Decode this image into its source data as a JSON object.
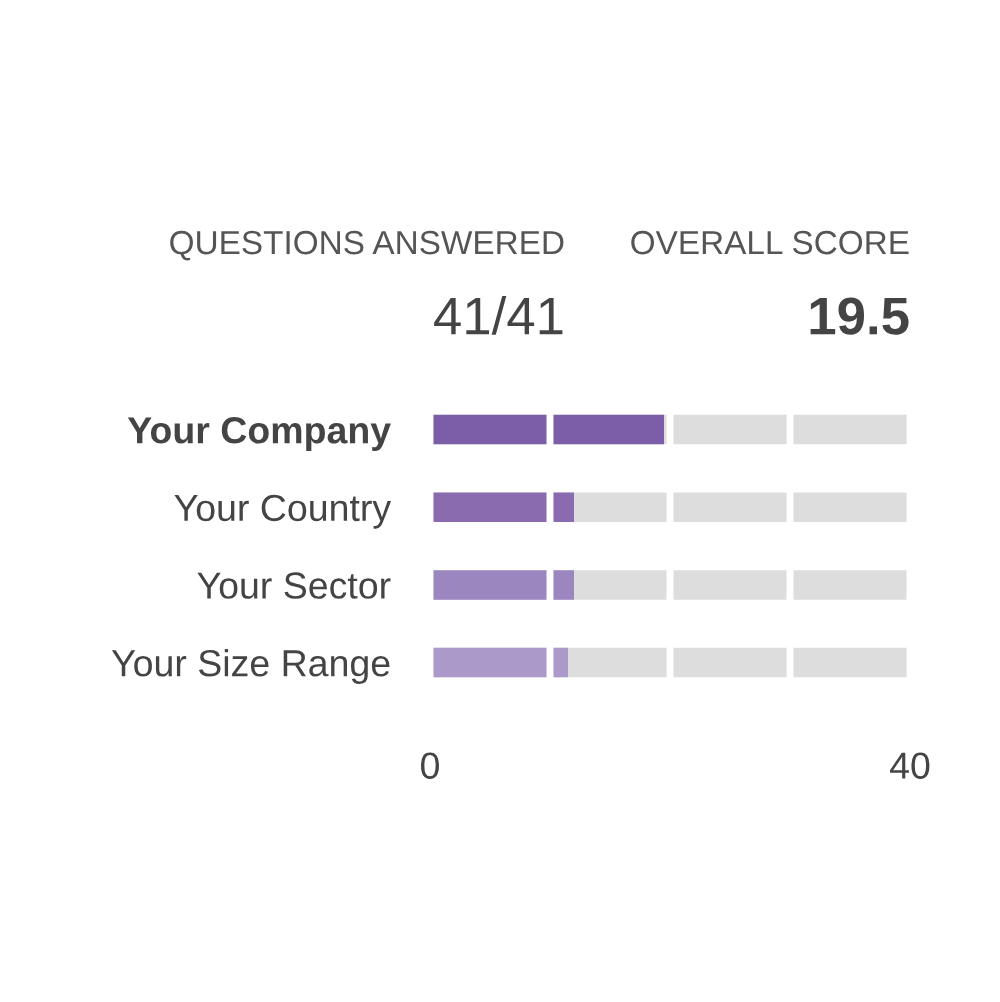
{
  "chart_data": {
    "type": "bar",
    "orientation": "horizontal",
    "categories": [
      "Your Company",
      "Your Country",
      "Your Sector",
      "Your Size Range"
    ],
    "values": [
      19.5,
      12,
      12,
      11.5
    ],
    "colors": [
      "#7b5ea7",
      "#8a6bb0",
      "#9c86bf",
      "#ab99c9"
    ],
    "xlim": [
      0,
      40
    ],
    "xticks": [
      0,
      {
        "value": 10,
        "label": null
      },
      {
        "value": 20,
        "label": null
      },
      {
        "value": 30,
        "label": null
      },
      40
    ],
    "grid": "x",
    "annotations": [
      "QUESTIONS ANSWERED",
      "41/41",
      "OVERALL SCORE",
      "19.5"
    ]
  }
}
